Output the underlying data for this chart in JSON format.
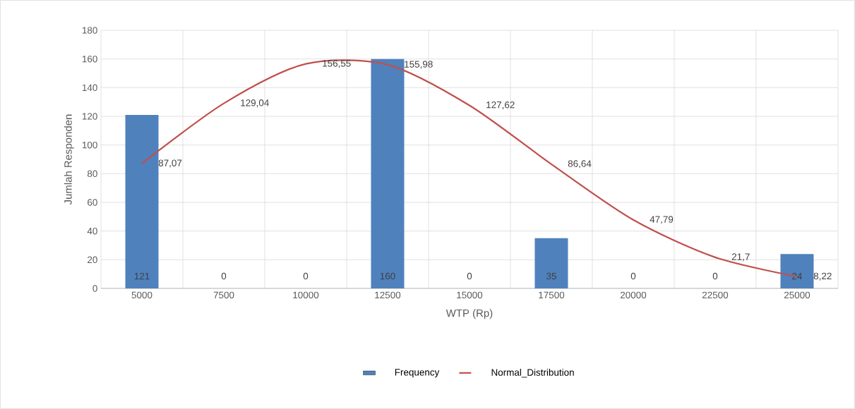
{
  "chart_data": {
    "type": "bar",
    "xlabel": "WTP (Rp)",
    "ylabel": "Jumlah Responden",
    "categories": [
      "5000",
      "7500",
      "10000",
      "12500",
      "15000",
      "17500",
      "20000",
      "22500",
      "25000"
    ],
    "series": [
      {
        "name": "Frequency",
        "color": "#4f81bd",
        "values": [
          121,
          0,
          0,
          160,
          0,
          35,
          0,
          0,
          24
        ],
        "value_labels": [
          "121",
          "0",
          "0",
          "160",
          "0",
          "35",
          "0",
          "0",
          "24"
        ]
      },
      {
        "name": "Normal_Distribution",
        "type": "line",
        "color": "#c0504d",
        "marker": "none",
        "values": [
          87.07,
          129.04,
          156.55,
          155.98,
          127.62,
          86.64,
          47.79,
          21.7,
          8.22
        ],
        "value_labels": [
          "87,07",
          "129,04",
          "156,55",
          "155,98",
          "127,62",
          "86,64",
          "47,79",
          "21,7",
          "8,22"
        ]
      }
    ],
    "ylim": [
      0,
      180
    ],
    "yticks": [
      0,
      20,
      40,
      60,
      80,
      100,
      120,
      140,
      160,
      180
    ],
    "grid": true,
    "legend": "bottom"
  }
}
